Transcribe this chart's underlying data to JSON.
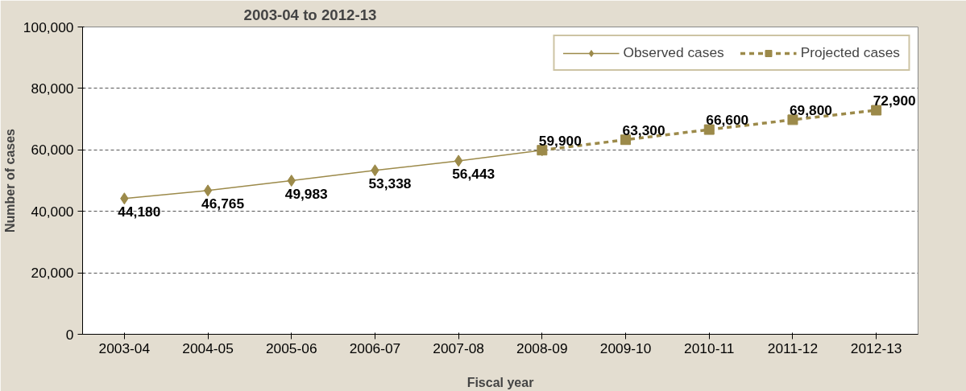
{
  "chart_data": {
    "type": "line",
    "title": "2003-04 to 2012-13",
    "xlabel": "Fiscal year",
    "ylabel": "Number of cases",
    "categories": [
      "2003-04",
      "2004-05",
      "2005-06",
      "2006-07",
      "2007-08",
      "2008-09",
      "2009-10",
      "2010-11",
      "2011-12",
      "2012-13"
    ],
    "series": [
      {
        "name": "Observed cases",
        "color": "#9c8a4a",
        "marker": "diamond",
        "line_style": "solid",
        "values": [
          44180,
          46765,
          49983,
          53338,
          56443,
          59900,
          null,
          null,
          null,
          null
        ],
        "value_labels": [
          "44,180",
          "46,765",
          "49,983",
          "53,338",
          "56,443",
          null,
          null,
          null,
          null,
          null
        ]
      },
      {
        "name": "Projected cases",
        "color": "#9c8a4a",
        "marker": "square",
        "line_style": "dashed",
        "values": [
          null,
          null,
          null,
          null,
          null,
          59900,
          63300,
          66600,
          69800,
          72900
        ],
        "value_labels": [
          null,
          null,
          null,
          null,
          null,
          "59,900",
          "63,300",
          "66,600",
          "69,800",
          "72,900"
        ]
      }
    ],
    "ylim": [
      0,
      100000
    ],
    "yticks": [
      0,
      {
        "value": 20000,
        "label": "20,000"
      },
      {
        "value": 40000,
        "label": "40,000"
      },
      {
        "value": 60000,
        "label": "60,000"
      },
      {
        "value": 80000,
        "label": "80,000"
      },
      {
        "value": 100000,
        "label": "100,000"
      }
    ],
    "grid": "y",
    "legend": "top right"
  }
}
